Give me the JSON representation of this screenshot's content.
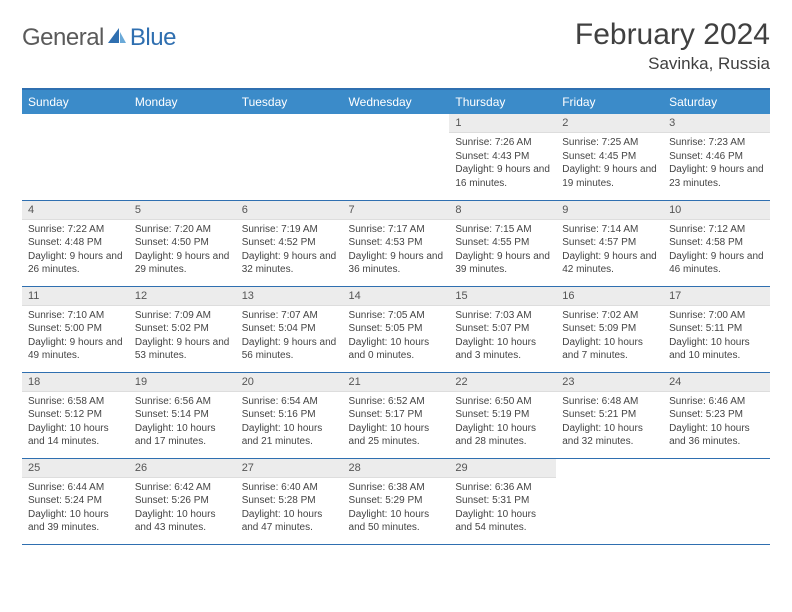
{
  "logo": {
    "word1": "General",
    "word2": "Blue"
  },
  "title": "February 2024",
  "location": "Savinka, Russia",
  "colors": {
    "header_bg": "#3b8bc9",
    "header_text": "#ffffff",
    "border": "#2f6fb0",
    "daynum_bg": "#ececec",
    "text": "#444444",
    "logo_gray": "#5a5a5a",
    "logo_blue": "#2f6fb0"
  },
  "day_headers": [
    "Sunday",
    "Monday",
    "Tuesday",
    "Wednesday",
    "Thursday",
    "Friday",
    "Saturday"
  ],
  "weeks": [
    [
      {
        "n": "",
        "sr": "",
        "ss": "",
        "dl": ""
      },
      {
        "n": "",
        "sr": "",
        "ss": "",
        "dl": ""
      },
      {
        "n": "",
        "sr": "",
        "ss": "",
        "dl": ""
      },
      {
        "n": "",
        "sr": "",
        "ss": "",
        "dl": ""
      },
      {
        "n": "1",
        "sr": "Sunrise: 7:26 AM",
        "ss": "Sunset: 4:43 PM",
        "dl": "Daylight: 9 hours and 16 minutes."
      },
      {
        "n": "2",
        "sr": "Sunrise: 7:25 AM",
        "ss": "Sunset: 4:45 PM",
        "dl": "Daylight: 9 hours and 19 minutes."
      },
      {
        "n": "3",
        "sr": "Sunrise: 7:23 AM",
        "ss": "Sunset: 4:46 PM",
        "dl": "Daylight: 9 hours and 23 minutes."
      }
    ],
    [
      {
        "n": "4",
        "sr": "Sunrise: 7:22 AM",
        "ss": "Sunset: 4:48 PM",
        "dl": "Daylight: 9 hours and 26 minutes."
      },
      {
        "n": "5",
        "sr": "Sunrise: 7:20 AM",
        "ss": "Sunset: 4:50 PM",
        "dl": "Daylight: 9 hours and 29 minutes."
      },
      {
        "n": "6",
        "sr": "Sunrise: 7:19 AM",
        "ss": "Sunset: 4:52 PM",
        "dl": "Daylight: 9 hours and 32 minutes."
      },
      {
        "n": "7",
        "sr": "Sunrise: 7:17 AM",
        "ss": "Sunset: 4:53 PM",
        "dl": "Daylight: 9 hours and 36 minutes."
      },
      {
        "n": "8",
        "sr": "Sunrise: 7:15 AM",
        "ss": "Sunset: 4:55 PM",
        "dl": "Daylight: 9 hours and 39 minutes."
      },
      {
        "n": "9",
        "sr": "Sunrise: 7:14 AM",
        "ss": "Sunset: 4:57 PM",
        "dl": "Daylight: 9 hours and 42 minutes."
      },
      {
        "n": "10",
        "sr": "Sunrise: 7:12 AM",
        "ss": "Sunset: 4:58 PM",
        "dl": "Daylight: 9 hours and 46 minutes."
      }
    ],
    [
      {
        "n": "11",
        "sr": "Sunrise: 7:10 AM",
        "ss": "Sunset: 5:00 PM",
        "dl": "Daylight: 9 hours and 49 minutes."
      },
      {
        "n": "12",
        "sr": "Sunrise: 7:09 AM",
        "ss": "Sunset: 5:02 PM",
        "dl": "Daylight: 9 hours and 53 minutes."
      },
      {
        "n": "13",
        "sr": "Sunrise: 7:07 AM",
        "ss": "Sunset: 5:04 PM",
        "dl": "Daylight: 9 hours and 56 minutes."
      },
      {
        "n": "14",
        "sr": "Sunrise: 7:05 AM",
        "ss": "Sunset: 5:05 PM",
        "dl": "Daylight: 10 hours and 0 minutes."
      },
      {
        "n": "15",
        "sr": "Sunrise: 7:03 AM",
        "ss": "Sunset: 5:07 PM",
        "dl": "Daylight: 10 hours and 3 minutes."
      },
      {
        "n": "16",
        "sr": "Sunrise: 7:02 AM",
        "ss": "Sunset: 5:09 PM",
        "dl": "Daylight: 10 hours and 7 minutes."
      },
      {
        "n": "17",
        "sr": "Sunrise: 7:00 AM",
        "ss": "Sunset: 5:11 PM",
        "dl": "Daylight: 10 hours and 10 minutes."
      }
    ],
    [
      {
        "n": "18",
        "sr": "Sunrise: 6:58 AM",
        "ss": "Sunset: 5:12 PM",
        "dl": "Daylight: 10 hours and 14 minutes."
      },
      {
        "n": "19",
        "sr": "Sunrise: 6:56 AM",
        "ss": "Sunset: 5:14 PM",
        "dl": "Daylight: 10 hours and 17 minutes."
      },
      {
        "n": "20",
        "sr": "Sunrise: 6:54 AM",
        "ss": "Sunset: 5:16 PM",
        "dl": "Daylight: 10 hours and 21 minutes."
      },
      {
        "n": "21",
        "sr": "Sunrise: 6:52 AM",
        "ss": "Sunset: 5:17 PM",
        "dl": "Daylight: 10 hours and 25 minutes."
      },
      {
        "n": "22",
        "sr": "Sunrise: 6:50 AM",
        "ss": "Sunset: 5:19 PM",
        "dl": "Daylight: 10 hours and 28 minutes."
      },
      {
        "n": "23",
        "sr": "Sunrise: 6:48 AM",
        "ss": "Sunset: 5:21 PM",
        "dl": "Daylight: 10 hours and 32 minutes."
      },
      {
        "n": "24",
        "sr": "Sunrise: 6:46 AM",
        "ss": "Sunset: 5:23 PM",
        "dl": "Daylight: 10 hours and 36 minutes."
      }
    ],
    [
      {
        "n": "25",
        "sr": "Sunrise: 6:44 AM",
        "ss": "Sunset: 5:24 PM",
        "dl": "Daylight: 10 hours and 39 minutes."
      },
      {
        "n": "26",
        "sr": "Sunrise: 6:42 AM",
        "ss": "Sunset: 5:26 PM",
        "dl": "Daylight: 10 hours and 43 minutes."
      },
      {
        "n": "27",
        "sr": "Sunrise: 6:40 AM",
        "ss": "Sunset: 5:28 PM",
        "dl": "Daylight: 10 hours and 47 minutes."
      },
      {
        "n": "28",
        "sr": "Sunrise: 6:38 AM",
        "ss": "Sunset: 5:29 PM",
        "dl": "Daylight: 10 hours and 50 minutes."
      },
      {
        "n": "29",
        "sr": "Sunrise: 6:36 AM",
        "ss": "Sunset: 5:31 PM",
        "dl": "Daylight: 10 hours and 54 minutes."
      },
      {
        "n": "",
        "sr": "",
        "ss": "",
        "dl": ""
      },
      {
        "n": "",
        "sr": "",
        "ss": "",
        "dl": ""
      }
    ]
  ]
}
